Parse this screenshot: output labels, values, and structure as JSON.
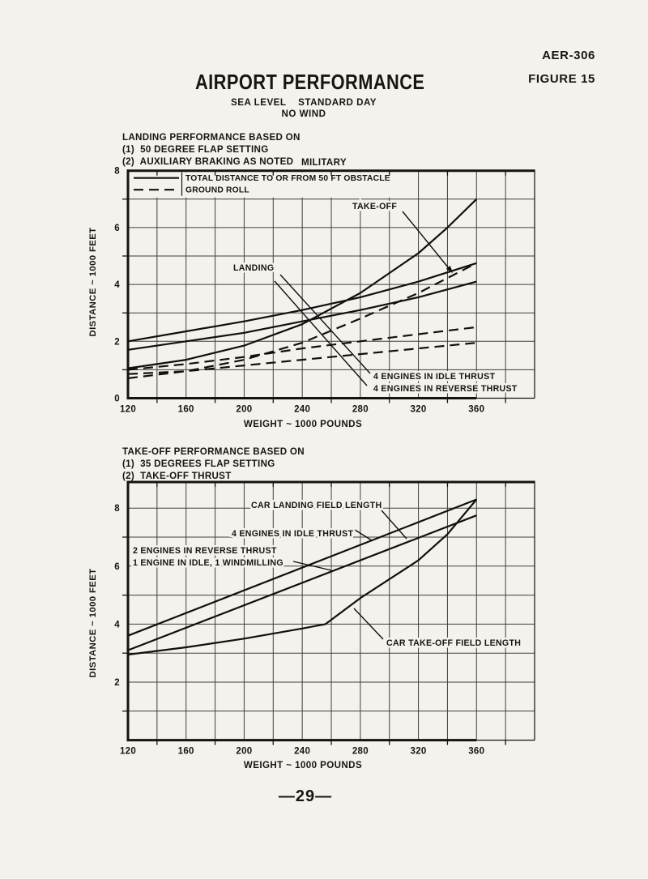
{
  "page": {
    "doc_number": "AER-306",
    "figure_label": "FIGURE 15",
    "title": "AIRPORT PERFORMANCE",
    "conditions_line1": "SEA LEVEL    STANDARD DAY",
    "conditions_line2": "NO WIND",
    "page_number": "—29—"
  },
  "colors": {
    "paper": "#f4f2ec",
    "ink": "#161616"
  },
  "charts": {
    "top": {
      "notes": [
        "LANDING PERFORMANCE BASED ON",
        "(1)  50 DEGREE FLAP SETTING",
        "(2)  AUXILIARY BRAKING AS NOTED"
      ],
      "military_label": "MILITARY",
      "legend": {
        "solid_label": "TOTAL DISTANCE TO OR FROM 50 FT OBSTACLE",
        "dashed_label": "GROUND ROLL"
      },
      "annotations": {
        "takeoff": "TAKE-OFF",
        "landing": "LANDING",
        "idle": "4 ENGINES IN IDLE THRUST",
        "reverse": "4 ENGINES IN REVERSE THRUST"
      },
      "xlabel": "WEIGHT ~ 1000 POUNDS",
      "ylabel": "DISTANCE ~ 1000 FEET"
    },
    "bottom": {
      "notes": [
        "TAKE-OFF PERFORMANCE BASED ON",
        "(1)  35 DEGREES FLAP SETTING",
        "(2)  TAKE-OFF THRUST"
      ],
      "annotations": {
        "car_landing": "CAR LANDING FIELD LENGTH",
        "idle4": "4 ENGINES IN IDLE THRUST",
        "rev_line1": "2 ENGINES IN REVERSE THRUST",
        "rev_line2": "1 ENGINE IN IDLE, 1 WINDMILLING",
        "car_takeoff": "CAR TAKE-OFF FIELD LENGTH"
      },
      "xlabel": "WEIGHT ~ 1000 POUNDS",
      "ylabel": "DISTANCE ~ 1000 FEET"
    }
  },
  "chart_data": [
    {
      "type": "line",
      "title": "LANDING PERFORMANCE (MILITARY)",
      "x": [
        120,
        160,
        200,
        240,
        280,
        320,
        360
      ],
      "series": [
        {
          "name": "TAKE-OFF — TOTAL DISTANCE TO OR FROM 50 FT OBSTACLE",
          "style": "solid",
          "x": [
            120,
            160,
            200,
            240,
            280,
            320,
            340,
            360
          ],
          "values": [
            1.05,
            1.35,
            1.85,
            2.6,
            3.7,
            5.1,
            6.0,
            7.0
          ]
        },
        {
          "name": "LANDING, 4 ENGINES IN IDLE THRUST — TOTAL DISTANCE",
          "style": "solid",
          "values": [
            2.0,
            2.35,
            2.7,
            3.1,
            3.55,
            4.1,
            4.75
          ]
        },
        {
          "name": "LANDING, 4 ENGINES IN REVERSE THRUST — TOTAL DISTANCE",
          "style": "solid",
          "values": [
            1.7,
            2.0,
            2.3,
            2.7,
            3.1,
            3.55,
            4.1
          ]
        },
        {
          "name": "TAKE-OFF — GROUND ROLL",
          "style": "dashed",
          "values": [
            0.7,
            0.95,
            1.35,
            1.95,
            2.8,
            3.7,
            4.75
          ]
        },
        {
          "name": "LANDING, 4 ENGINES IN IDLE THRUST — GROUND ROLL",
          "style": "dashed",
          "values": [
            1.0,
            1.2,
            1.45,
            1.75,
            2.0,
            2.25,
            2.5
          ]
        },
        {
          "name": "LANDING, 4 ENGINES IN REVERSE THRUST — GROUND ROLL",
          "style": "dashed",
          "values": [
            0.85,
            0.95,
            1.15,
            1.35,
            1.55,
            1.75,
            1.95
          ]
        }
      ],
      "xlabel": "WEIGHT ~ 1000 POUNDS",
      "ylabel": "DISTANCE ~ 1000 FEET",
      "xlim": [
        120,
        400
      ],
      "ylim": [
        0,
        8
      ],
      "x_ticks": [
        120,
        160,
        200,
        240,
        280,
        320,
        360
      ],
      "y_ticks": [
        0,
        2,
        4,
        6,
        8
      ],
      "grid": "on",
      "legend_position": "top-left"
    },
    {
      "type": "line",
      "title": "TAKE-OFF PERFORMANCE",
      "x": [
        120,
        360
      ],
      "series": [
        {
          "name": "4 ENGINES IN IDLE THRUST / 2 ENGINES IN REVERSE THRUST, 1 ENGINE IN IDLE, 1 WINDMILLING",
          "style": "solid",
          "values": [
            3.6,
            8.3
          ]
        },
        {
          "name": "CAR LANDING FIELD LENGTH",
          "style": "solid",
          "values": [
            3.1,
            7.75
          ]
        },
        {
          "name": "CAR TAKE-OFF FIELD LENGTH",
          "style": "solid",
          "x": [
            120,
            160,
            200,
            240,
            256,
            280,
            320,
            340,
            360
          ],
          "values": [
            2.95,
            3.2,
            3.5,
            3.85,
            4.0,
            4.9,
            6.2,
            7.1,
            8.3
          ]
        }
      ],
      "xlabel": "WEIGHT ~ 1000 POUNDS",
      "ylabel": "DISTANCE ~ 1000 FEET",
      "xlim": [
        120,
        400
      ],
      "ylim": [
        0,
        8.9
      ],
      "x_ticks": [
        120,
        160,
        200,
        240,
        280,
        320,
        360
      ],
      "y_ticks": [
        2,
        4,
        6,
        8
      ],
      "grid": "on"
    }
  ]
}
